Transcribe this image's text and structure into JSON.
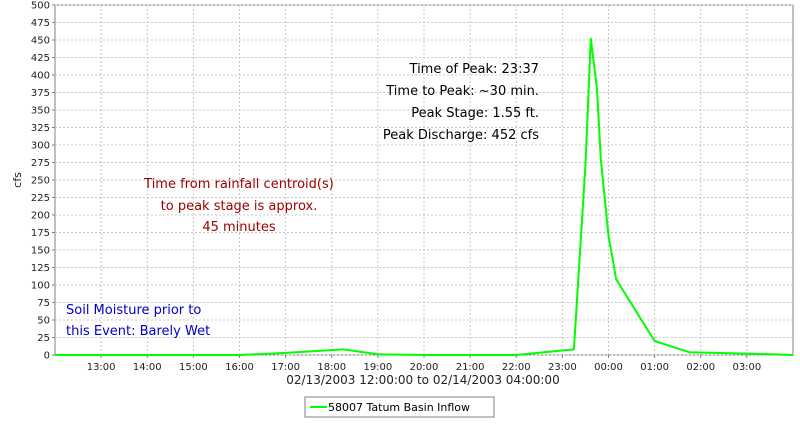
{
  "chart_data": {
    "type": "line",
    "title": "",
    "ylabel": "cfs",
    "xlabel": "02/13/2003 12:00:00 to 02/14/2003 04:00:00",
    "ylim": [
      0,
      500
    ],
    "xlim": [
      "02/13/2003 12:00",
      "02/14/2003 04:00"
    ],
    "grid": true,
    "legend_position": "bottom-center",
    "y_ticks": [
      0,
      25,
      50,
      75,
      100,
      125,
      150,
      175,
      200,
      225,
      250,
      275,
      300,
      325,
      350,
      375,
      400,
      425,
      450,
      475,
      500
    ],
    "x_ticks": [
      {
        "t": "02/13/2003 13:00",
        "label": "13:00"
      },
      {
        "t": "02/13/2003 14:00",
        "label": "14:00"
      },
      {
        "t": "02/13/2003 15:00",
        "label": "15:00"
      },
      {
        "t": "02/13/2003 16:00",
        "label": "16:00"
      },
      {
        "t": "02/13/2003 17:00",
        "label": "17:00"
      },
      {
        "t": "02/13/2003 18:00",
        "label": "18:00"
      },
      {
        "t": "02/13/2003 19:00",
        "label": "19:00"
      },
      {
        "t": "02/13/2003 20:00",
        "label": "20:00"
      },
      {
        "t": "02/13/2003 21:00",
        "label": "21:00"
      },
      {
        "t": "02/13/2003 22:00",
        "label": "22:00"
      },
      {
        "t": "02/13/2003 23:00",
        "label": "23:00"
      },
      {
        "t": "02/14/2003 00:00",
        "label": "00:00"
      },
      {
        "t": "02/14/2003 01:00",
        "label": "01:00"
      },
      {
        "t": "02/14/2003 02:00",
        "label": "02:00"
      },
      {
        "t": "02/14/2003 03:00",
        "label": "03:00"
      }
    ],
    "series": [
      {
        "name": "58007 Tatum Basin Inflow",
        "color": "#00ff00",
        "points": [
          {
            "x": "02/13/2003 12:00",
            "y": 0
          },
          {
            "x": "02/13/2003 16:00",
            "y": 0
          },
          {
            "x": "02/13/2003 17:00",
            "y": 3
          },
          {
            "x": "02/13/2003 18:15",
            "y": 8
          },
          {
            "x": "02/13/2003 19:00",
            "y": 1
          },
          {
            "x": "02/13/2003 20:00",
            "y": 0
          },
          {
            "x": "02/13/2003 22:00",
            "y": 0
          },
          {
            "x": "02/13/2003 23:15",
            "y": 8
          },
          {
            "x": "02/13/2003 23:30",
            "y": 270
          },
          {
            "x": "02/13/2003 23:37",
            "y": 452
          },
          {
            "x": "02/13/2003 23:45",
            "y": 380
          },
          {
            "x": "02/13/2003 23:50",
            "y": 280
          },
          {
            "x": "02/14/2003 00:00",
            "y": 170
          },
          {
            "x": "02/14/2003 00:10",
            "y": 108
          },
          {
            "x": "02/14/2003 01:00",
            "y": 20
          },
          {
            "x": "02/14/2003 01:45",
            "y": 4
          },
          {
            "x": "02/14/2003 03:00",
            "y": 2
          },
          {
            "x": "02/14/2003 04:00",
            "y": 0
          }
        ]
      }
    ],
    "annotations": {
      "peak": [
        "Time of Peak: 23:37",
        "Time to Peak: ~30 min.",
        "Peak Stage: 1.55 ft.",
        "Peak Discharge: 452 cfs"
      ],
      "centroid": [
        "Time from rainfall centroid(s)",
        "to peak stage is approx.",
        "45 minutes"
      ],
      "soil": [
        "Soil Moisture prior to",
        "this Event: Barely Wet"
      ]
    }
  }
}
